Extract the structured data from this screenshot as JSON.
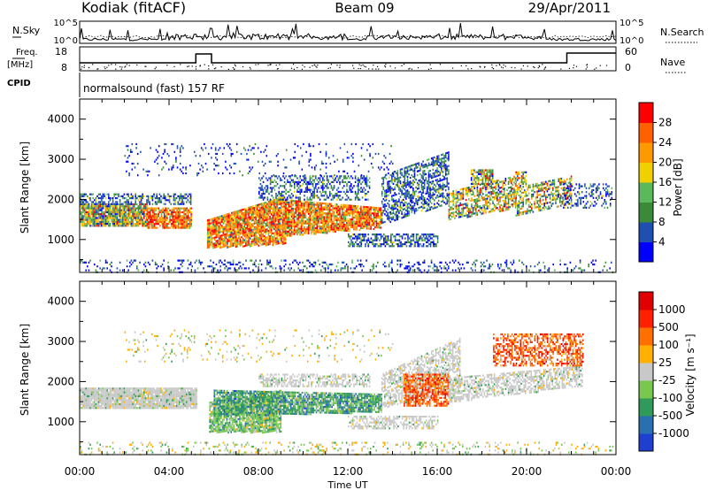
{
  "header": {
    "station": "Kodiak (fitACF)",
    "beam": "Beam 09",
    "date": "29/Apr/2011"
  },
  "noise_panel": {
    "left_label": "N.Sky",
    "right_label": "N.Search",
    "left_ticks": [
      "10^5",
      "10^0"
    ],
    "right_ticks": [
      "10^5",
      "10^0"
    ]
  },
  "freq_panel": {
    "left_label_top": "Freq.",
    "left_label_unit": "[MHz]",
    "left_ticks": [
      "18",
      "8"
    ],
    "right_label": "Nave",
    "right_ticks": [
      "60",
      "0"
    ],
    "cpid_label": "CPID",
    "mode_text": "normalsound (fast) 157 RF"
  },
  "chart_data": [
    {
      "type": "heatmap",
      "name": "power",
      "ylabel": "Slant Range [km]",
      "yticks": [
        "4000",
        "3000",
        "2000",
        "1000"
      ],
      "ylim": [
        180,
        4500
      ],
      "colorbar": {
        "label": "Power [dB]",
        "ticks": [
          "28",
          "24",
          "20",
          "16",
          "12",
          "8",
          "4"
        ],
        "colors": [
          "#0000ff",
          "#1f4fb0",
          "#3a8a3a",
          "#5bb85b",
          "#f0d000",
          "#ff9900",
          "#ff6000",
          "#ff0000"
        ]
      }
    },
    {
      "type": "heatmap",
      "name": "velocity",
      "ylabel": "Slant Range [km]",
      "yticks": [
        "4000",
        "3000",
        "2000",
        "1000"
      ],
      "ylim": [
        180,
        4500
      ],
      "colorbar": {
        "label": "Velocity [m s⁻¹]",
        "ticks": [
          "1000",
          "500",
          "100",
          "25",
          "-25",
          "-100",
          "-500",
          "-1000"
        ],
        "colors": [
          "#1f3fd0",
          "#2a6fb0",
          "#2f9a5a",
          "#78c850",
          "#c8c8c8",
          "#ffb000",
          "#ff7000",
          "#ff2000",
          "#e00000"
        ]
      }
    }
  ],
  "time_axis": {
    "ticks": [
      "00:00",
      "04:00",
      "08:00",
      "12:00",
      "16:00",
      "20:00",
      "00:00"
    ],
    "label": "Time UT"
  }
}
